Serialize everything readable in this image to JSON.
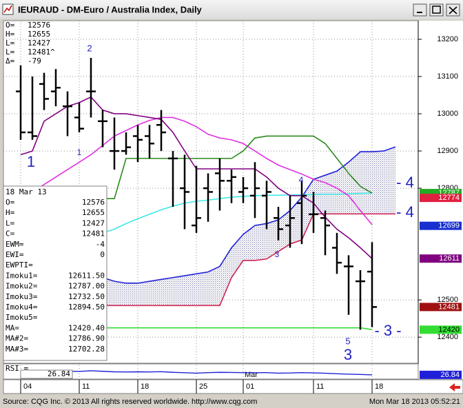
{
  "window": {
    "footer_source": "Source: CQG Inc. © 2013 All rights reserved worldwide.  http://www.cqg.com",
    "footer_time": "Mon Mar 18 2013 05:52:21"
  },
  "chart_data": {
    "type": "ohlc",
    "title": "IEURAUD - DM-Euro / Australia Index, Daily",
    "categories": [
      "04",
      null,
      null,
      null,
      null,
      "11",
      null,
      null,
      null,
      null,
      "18",
      null,
      null,
      null,
      null,
      "25",
      null,
      null,
      null,
      "01",
      null,
      null,
      null,
      null,
      null,
      "11",
      null,
      null,
      null,
      null,
      "18",
      null,
      null
    ],
    "month_label": "Mar",
    "open": [
      13060,
      12950,
      13080,
      13060,
      13020,
      12990,
      13060,
      12980,
      12900,
      12900,
      12940,
      12940,
      12970,
      12880,
      12800,
      12700,
      12800,
      12840,
      12820,
      12790,
      12780,
      12780,
      12720,
      12700,
      12760,
      12730,
      12720,
      12640,
      12590,
      12550,
      12576,
      null,
      null
    ],
    "high": [
      13130,
      13100,
      13110,
      13120,
      13060,
      13030,
      13150,
      13010,
      12990,
      12950,
      12970,
      12970,
      13010,
      12900,
      12890,
      12860,
      12840,
      12880,
      12850,
      12830,
      12870,
      12820,
      12750,
      12780,
      12820,
      12790,
      12740,
      12680,
      12620,
      12580,
      12655,
      null,
      null
    ],
    "low": [
      12930,
      12930,
      13010,
      13020,
      12940,
      12950,
      12990,
      12910,
      12850,
      12890,
      12870,
      12880,
      12900,
      12750,
      12690,
      12680,
      12710,
      12740,
      12760,
      12760,
      12720,
      12690,
      12660,
      12640,
      12650,
      12680,
      12620,
      12570,
      12460,
      12420,
      12427,
      null,
      null
    ],
    "close": [
      12950,
      12940,
      13040,
      13070,
      13020,
      12960,
      13060,
      12980,
      12900,
      12910,
      12930,
      12920,
      12950,
      12880,
      12790,
      12720,
      12790,
      12820,
      12830,
      12800,
      12800,
      12790,
      12690,
      12720,
      12780,
      12730,
      12700,
      12600,
      12590,
      12550,
      12481,
      null,
      null
    ],
    "bar_color": "#000000",
    "series": [
      {
        "color": "#2020d8",
        "values": [
          null,
          null,
          null,
          null,
          null,
          null,
          null,
          12560,
          12550,
          12545,
          12545,
          12550,
          12555,
          12560,
          12565,
          12570,
          12575,
          12590,
          12640,
          12676,
          12700,
          12705,
          12715,
          12740,
          12776,
          12824,
          12835,
          12846,
          12870,
          12898,
          12898,
          12900,
          12911
        ]
      },
      {
        "color": "#d02050",
        "values": [
          null,
          null,
          null,
          null,
          null,
          null,
          null,
          12485,
          12485,
          12485,
          12485,
          12485,
          12485,
          12485,
          12485,
          12485,
          12485,
          12485,
          12560,
          12606,
          12606,
          12610,
          12630,
          12650,
          12661,
          12731,
          12731,
          12731,
          12731,
          12731,
          12731,
          12731,
          12731
        ]
      },
      {
        "color": "#40e8e8",
        "values": [
          null,
          null,
          null,
          null,
          null,
          null,
          null,
          12680,
          12690,
          12705,
          12718,
          12730,
          12742,
          12752,
          12760,
          12765,
          12768,
          12772,
          12776,
          12778,
          12780,
          12781,
          12781,
          12782,
          12782,
          12783,
          12784,
          12784,
          12785,
          12786,
          12787,
          null,
          null
        ]
      },
      {
        "color": "#e030e0",
        "values": [
          12772,
          12790,
          12810,
          12830,
          12850,
          12870,
          12890,
          12915,
          12940,
          12955,
          12970,
          12982,
          12990,
          12990,
          12980,
          12965,
          12945,
          12935,
          12930,
          12920,
          12900,
          12880,
          12862,
          12850,
          12838,
          12824,
          12815,
          12800,
          12780,
          12740,
          12702,
          null,
          null
        ]
      },
      {
        "color": "#2a8a1a",
        "values": [
          12772,
          12772,
          12772,
          12772,
          12772,
          12772,
          12772,
          12772,
          12772,
          12880,
          12880,
          12880,
          12880,
          12880,
          12880,
          12880,
          12880,
          12880,
          12880,
          12900,
          12935,
          12940,
          12940,
          12940,
          12940,
          12940,
          12920,
          12880,
          12840,
          12805,
          12787,
          null,
          null
        ]
      },
      {
        "color": "#800080",
        "values": [
          12890,
          12900,
          12980,
          13000,
          13020,
          13030,
          13045,
          13010,
          13000,
          13000,
          12995,
          12990,
          12985,
          12950,
          12900,
          12852,
          12852,
          12852,
          12852,
          12852,
          12852,
          12830,
          12800,
          12780,
          12780,
          12760,
          12722,
          12690,
          12667,
          12640,
          12611,
          null,
          null
        ]
      },
      {
        "color": "#33dd33",
        "values": [
          null,
          null,
          null,
          null,
          null,
          null,
          null,
          12425,
          12425,
          12425,
          12425,
          12425,
          12425,
          12425,
          12425,
          12425,
          12425,
          12425,
          12425,
          12425,
          12425,
          12425,
          12425,
          12425,
          12425,
          12425,
          12425,
          12425,
          12425,
          12425,
          12420.4,
          null,
          null
        ]
      }
    ],
    "cloud_fill": "#b8b8c8",
    "ylim": [
      12330,
      13250
    ],
    "yticks": [
      12400,
      12500,
      12800,
      12900,
      13000,
      13100,
      13200
    ],
    "grid": true,
    "tags": [
      {
        "value": 12787,
        "color": "#22aa22"
      },
      {
        "value": 12774,
        "color": "#e02040"
      },
      {
        "value": 12699,
        "color": "#1830d0"
      },
      {
        "value": 12611,
        "color": "#800080"
      },
      {
        "value": 12481,
        "color": "#a01010"
      },
      {
        "value": 12420,
        "color": "#33dd33"
      }
    ],
    "annotations": [
      "1",
      "2",
      "1",
      "4",
      "3",
      "5",
      "3",
      "- 4",
      "- 4",
      "- 3 -"
    ],
    "annotation_color": "#2020c0",
    "info": [
      [
        "O=",
        "12576"
      ],
      [
        "H=",
        "12655"
      ],
      [
        "L=",
        "12427"
      ],
      [
        "L=",
        "12481^"
      ],
      [
        "Δ=",
        "-79"
      ]
    ],
    "data_window": {
      "title": "18 Mar 13",
      "rows": [
        [
          "O=",
          "12576"
        ],
        [
          "H=",
          "12655"
        ],
        [
          "L=",
          "12427"
        ],
        [
          "C=",
          "12481"
        ],
        [
          "EWM=",
          "-4"
        ],
        [
          "EWI=",
          "0"
        ],
        [
          "EWPTI="
        ],
        [
          "Imoku1=",
          "12611.50"
        ],
        [
          "Imoku2=",
          "12787.00"
        ],
        [
          "Imoku3=",
          "12732.50"
        ],
        [
          "Imoku4=",
          "12894.50"
        ],
        [
          "Imoku5="
        ],
        [
          "MA=",
          "12420.40"
        ],
        [
          "MA#2=",
          "12786.90"
        ],
        [
          "MA#3=",
          "12702.28"
        ]
      ]
    },
    "rsi": {
      "label": "RSI =",
      "color": "#2020d8",
      "values": [
        48,
        50,
        55,
        57,
        55,
        53,
        58,
        54,
        50,
        49,
        50,
        49,
        51,
        46,
        43,
        40,
        44,
        46,
        45,
        44,
        43,
        44,
        40,
        41,
        44,
        42,
        39,
        35,
        32,
        30,
        26.84,
        null,
        null
      ],
      "ylim": [
        0,
        100
      ]
    }
  }
}
